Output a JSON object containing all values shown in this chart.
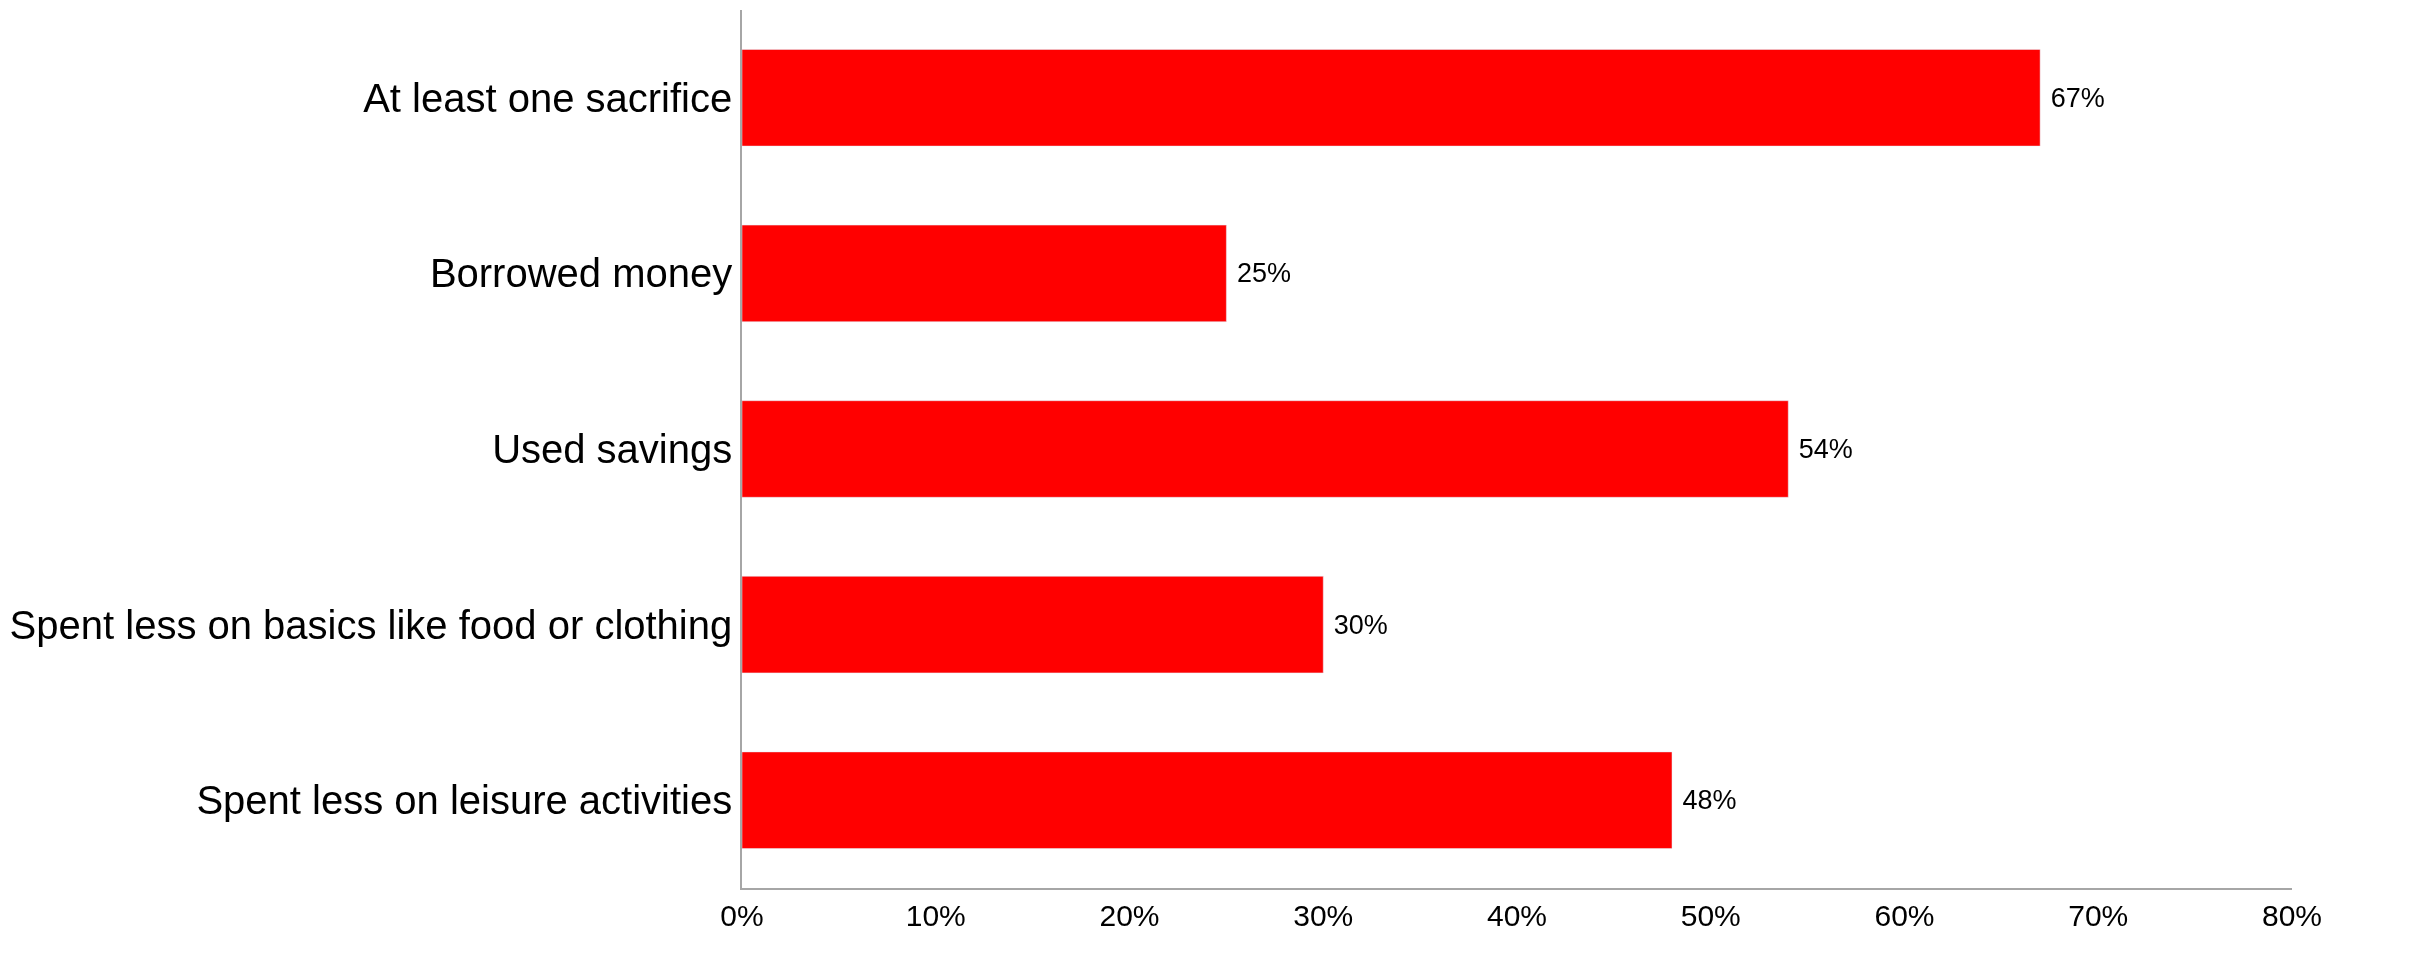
{
  "chart_data": {
    "type": "bar",
    "orientation": "horizontal",
    "categories": [
      "At least one sacrifice",
      "Borrowed money",
      "Used savings",
      "Spent less on basics like food or clothing",
      "Spent less on leisure activities"
    ],
    "values": [
      67,
      25,
      54,
      30,
      48
    ],
    "value_labels": [
      "67%",
      "25%",
      "54%",
      "30%",
      "48%"
    ],
    "color": "#ff0000",
    "xlim": [
      0,
      80
    ],
    "xticks": [
      {
        "value": 0,
        "label": "0%"
      },
      {
        "value": 10,
        "label": "10%"
      },
      {
        "value": 20,
        "label": "20%"
      },
      {
        "value": 30,
        "label": "30%"
      },
      {
        "value": 40,
        "label": "40%"
      },
      {
        "value": 50,
        "label": "50%"
      },
      {
        "value": 60,
        "label": "60%"
      },
      {
        "value": 70,
        "label": "70%"
      },
      {
        "value": 80,
        "label": "80%"
      }
    ]
  }
}
